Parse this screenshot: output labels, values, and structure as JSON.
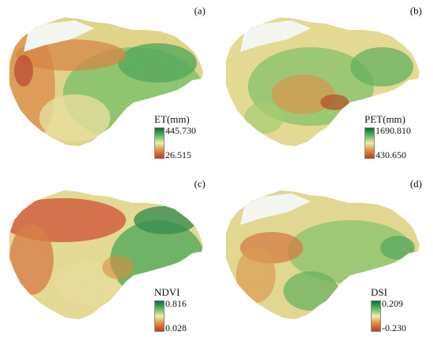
{
  "panels": [
    {
      "label": "(a)",
      "legend_title": "ET(mm)",
      "max": "445.730",
      "min": "26.515",
      "colors": [
        "#0a6b3c",
        "#5cb85c",
        "#eeeeaa",
        "#e08a3c",
        "#c0392b"
      ]
    },
    {
      "label": "(b)",
      "legend_title": "PET(mm)",
      "max": "1690.810",
      "min": "430.650",
      "colors": [
        "#0a6b3c",
        "#5cb85c",
        "#eeeeaa",
        "#e08a3c",
        "#b8401f"
      ]
    },
    {
      "label": "(c)",
      "legend_title": "NDVI",
      "max": "0.816",
      "min": "0.028",
      "colors": [
        "#0a6b3c",
        "#5cb85c",
        "#eeeeaa",
        "#e08a3c",
        "#c0392b"
      ]
    },
    {
      "label": "(d)",
      "legend_title": "DSI",
      "max": "0.209",
      "min": "-0.230",
      "colors": [
        "#0a6b3c",
        "#5cb85c",
        "#eeeeaa",
        "#e08a3c",
        "#c0392b"
      ]
    }
  ]
}
